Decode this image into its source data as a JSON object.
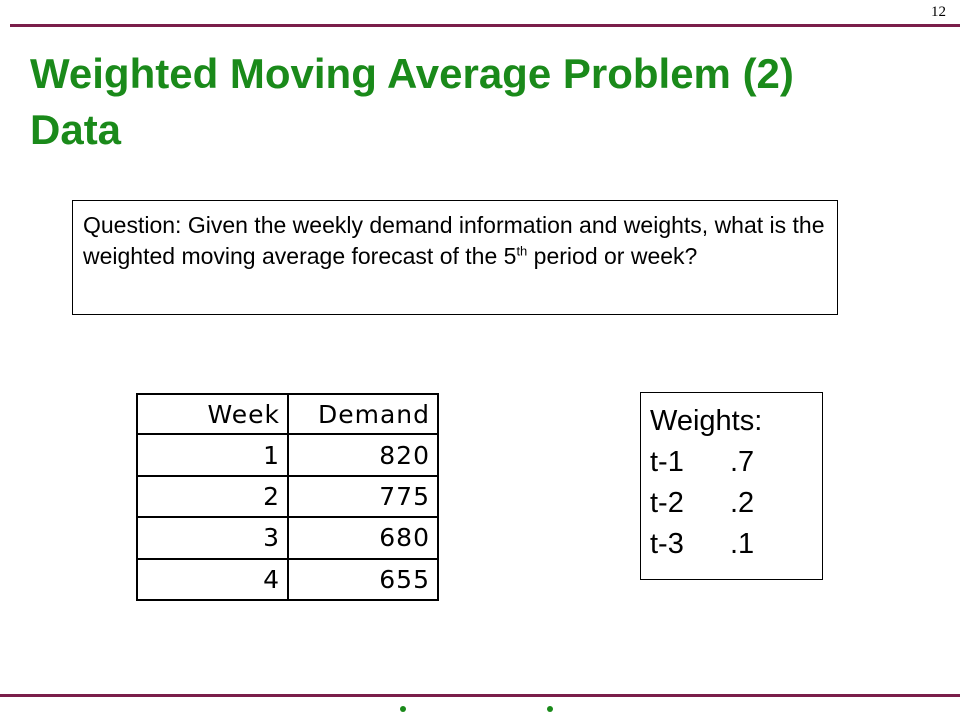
{
  "slide": {
    "page_number": "12",
    "title_line1": "Weighted Moving Average Problem (2)",
    "title_line2": "Data"
  },
  "question": {
    "text_before_sup": "Question: Given the weekly demand information and weights, what is the weighted moving average forecast of the 5",
    "superscript": "th",
    "text_after_sup": " period or week?"
  },
  "demand_table": {
    "headers": [
      "Week",
      "Demand"
    ],
    "rows": [
      [
        "1",
        "820"
      ],
      [
        "2",
        "775"
      ],
      [
        "3",
        "680"
      ],
      [
        "4",
        "655"
      ]
    ]
  },
  "weights": {
    "heading": "Weights:",
    "items": [
      {
        "lag": "t-1",
        "weight": ".7"
      },
      {
        "lag": "t-2",
        "weight": ".2"
      },
      {
        "lag": "t-3",
        "weight": ".1"
      }
    ]
  },
  "colors": {
    "title": "#1a8a1a",
    "rule": "#7a1e4a",
    "bullet": "#1a8a1a"
  }
}
